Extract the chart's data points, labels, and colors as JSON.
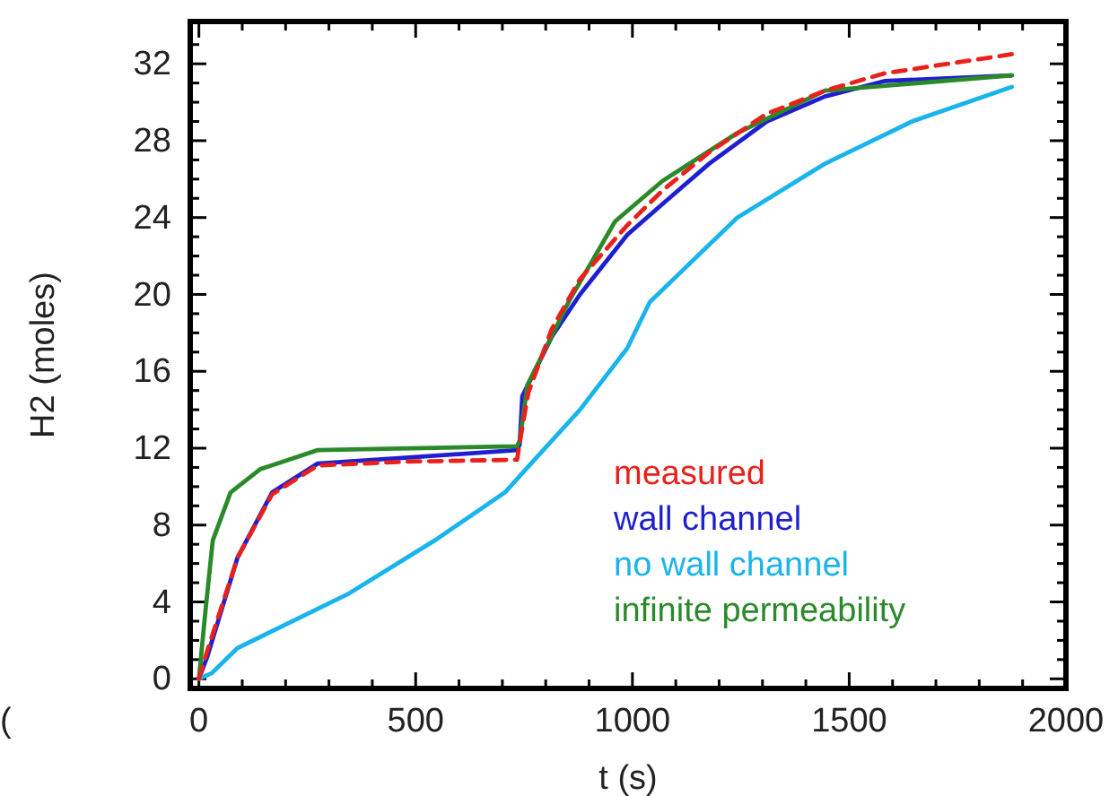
{
  "chart_data": {
    "type": "line",
    "xlabel": "t (s)",
    "ylabel": "H2 (moles)",
    "xlim": [
      -20,
      2000
    ],
    "ylim": [
      -0.5,
      34.2
    ],
    "xticks": [
      0,
      {
        "value": 100,
        "label": null
      },
      {
        "value": 200,
        "label": null
      },
      {
        "value": 300,
        "label": null
      },
      {
        "value": 400,
        "label": null
      },
      500,
      {
        "value": 600,
        "label": null
      },
      {
        "value": 700,
        "label": null
      },
      {
        "value": 800,
        "label": null
      },
      {
        "value": 900,
        "label": null
      },
      1000,
      {
        "value": 1100,
        "label": null
      },
      {
        "value": 1200,
        "label": null
      },
      {
        "value": 1300,
        "label": null
      },
      {
        "value": 1400,
        "label": null
      },
      1500,
      {
        "value": 1600,
        "label": null
      },
      {
        "value": 1700,
        "label": null
      },
      {
        "value": 1800,
        "label": null
      },
      {
        "value": 1900,
        "label": null
      },
      2000
    ],
    "yticks": [
      0,
      {
        "value": 1,
        "label": null
      },
      {
        "value": 2,
        "label": null
      },
      {
        "value": 3,
        "label": null
      },
      4,
      {
        "value": 5,
        "label": null
      },
      {
        "value": 6,
        "label": null
      },
      {
        "value": 7,
        "label": null
      },
      8,
      {
        "value": 9,
        "label": null
      },
      {
        "value": 10,
        "label": null
      },
      {
        "value": 11,
        "label": null
      },
      12,
      {
        "value": 13,
        "label": null
      },
      {
        "value": 14,
        "label": null
      },
      {
        "value": 15,
        "label": null
      },
      16,
      {
        "value": 17,
        "label": null
      },
      {
        "value": 18,
        "label": null
      },
      {
        "value": 19,
        "label": null
      },
      20,
      {
        "value": 21,
        "label": null
      },
      {
        "value": 22,
        "label": null
      },
      {
        "value": 23,
        "label": null
      },
      24,
      {
        "value": 25,
        "label": null
      },
      {
        "value": 26,
        "label": null
      },
      {
        "value": 27,
        "label": null
      },
      28,
      {
        "value": 29,
        "label": null
      },
      {
        "value": 30,
        "label": null
      },
      {
        "value": 31,
        "label": null
      },
      32,
      {
        "value": 33,
        "label": null
      }
    ],
    "legend": "bottom right",
    "grid": false,
    "annotations": [
      "("
    ],
    "series": [
      {
        "name": "measured",
        "color": "#e8211b",
        "line_style": "dashed",
        "x": [
          0,
          20,
          89,
          169,
          274,
          476,
          734,
          740,
          760,
          814,
          879,
          988,
          1069,
          1177,
          1310,
          1444,
          1581,
          1875
        ],
        "values": [
          0,
          1.5,
          6.3,
          9.6,
          11.1,
          11.3,
          11.4,
          12.3,
          14.9,
          18.2,
          20.8,
          23.6,
          25.4,
          27.4,
          29.4,
          30.6,
          31.5,
          32.5
        ]
      },
      {
        "name": "wall channel",
        "color": "#1f1fd0",
        "x": [
          0,
          20,
          89,
          169,
          274,
          476,
          734,
          740,
          746,
          814,
          879,
          988,
          1069,
          1177,
          1310,
          1444,
          1581,
          1875
        ],
        "values": [
          0,
          1.2,
          6.3,
          9.7,
          11.2,
          11.5,
          11.9,
          12.2,
          14.7,
          17.8,
          20.0,
          23.1,
          24.7,
          26.8,
          29.0,
          30.3,
          31.1,
          31.4
        ]
      },
      {
        "name": "no wall channel",
        "color": "#1ab4ec",
        "x": [
          0,
          30,
          89,
          343,
          544,
          706,
          746,
          879,
          988,
          1040,
          1242,
          1444,
          1645,
          1875
        ],
        "values": [
          0,
          0.3,
          1.6,
          4.4,
          7.2,
          9.7,
          10.7,
          14.0,
          17.2,
          19.6,
          24.0,
          26.8,
          29.0,
          30.8
        ]
      },
      {
        "name": "infinite permeability",
        "color": "#2a8a2a",
        "x": [
          0,
          15,
          32,
          73,
          141,
          274,
          734,
          740,
          758,
          855,
          960,
          1069,
          1242,
          1444,
          1875
        ],
        "values": [
          0,
          3.5,
          7.2,
          9.7,
          10.9,
          11.9,
          12.1,
          12.4,
          15.3,
          19.7,
          23.8,
          25.9,
          28.4,
          30.6,
          31.4
        ]
      }
    ]
  }
}
